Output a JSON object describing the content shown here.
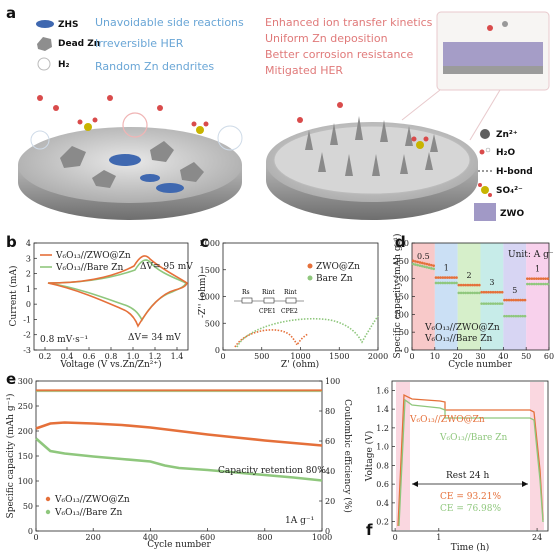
{
  "colors": {
    "orange": "#e5703a",
    "green": "#8fc77d",
    "blue": "#6aa6d6",
    "pink": "#e07a7a"
  },
  "panel_a": {
    "label": "a",
    "legend_left": [
      {
        "icon": "zhs-icon",
        "text": "ZHS"
      },
      {
        "icon": "dead-zn-icon",
        "text": "Dead Zn"
      },
      {
        "icon": "h2-icon",
        "text": "H₂"
      }
    ],
    "issues": [
      "Unavoidable side reactions",
      "Irreversible HER",
      "Random Zn dendrites"
    ],
    "benefits": [
      "Enhanced ion transfer kinetics",
      "Uniform Zn deposition",
      "Better corrosion resistance",
      "Mitigated HER"
    ],
    "legend_right": [
      "Zn²⁺",
      "H₂O",
      "H-bond",
      "SO₄²⁻",
      "ZWO"
    ]
  },
  "chart_data": [
    {
      "panel": "b",
      "type": "line",
      "xlabel": "Voltage (V vs.Zn/Zn²⁺)",
      "ylabel": "Current (mA)",
      "xlim": [
        0.1,
        1.5
      ],
      "ylim": [
        -3,
        4
      ],
      "xticks": [
        "0.2",
        "0.4",
        "0.6",
        "0.8",
        "1.0",
        "1.2",
        "1.4"
      ],
      "yticks": [
        "-3",
        "-2",
        "-1",
        "0",
        "1",
        "2",
        "3",
        "4"
      ],
      "series": [
        {
          "name": "V₆O₁₃//ZWO@Zn",
          "color": "#e5703a"
        },
        {
          "name": "V₆O₁₃//Bare Zn",
          "color": "#8fc77d"
        }
      ],
      "annotations": [
        "ΔV= 95 mV",
        "ΔV= 34 mV",
        "0.8 mV·s⁻¹"
      ]
    },
    {
      "panel": "c",
      "type": "line",
      "xlabel": "Z' (ohm)",
      "ylabel": "-Z'' (ohm)",
      "xlim": [
        0,
        2000
      ],
      "ylim": [
        0,
        2000
      ],
      "xticks": [
        "0",
        "500",
        "1000",
        "1500",
        "2000"
      ],
      "yticks": [
        "0",
        "500",
        "1000",
        "1500",
        "2000"
      ],
      "series": [
        {
          "name": "ZWO@Zn",
          "color": "#e5703a"
        },
        {
          "name": "Bare Zn",
          "color": "#8fc77d"
        }
      ],
      "circuit": [
        "Rs",
        "Rint",
        "Rint",
        "CPE1",
        "CPE2"
      ]
    },
    {
      "panel": "d",
      "type": "scatter",
      "xlabel": "Cycle number",
      "ylabel": "Specific capacity (mAh g⁻¹)",
      "xlim": [
        0,
        60
      ],
      "ylim": [
        0,
        300
      ],
      "xticks": [
        "0",
        "10",
        "20",
        "30",
        "40",
        "50",
        "60"
      ],
      "yticks": [
        "0",
        "50",
        "100",
        "150",
        "200",
        "250",
        "300"
      ],
      "unit_note": "Unit: A g⁻¹",
      "rates": [
        "0.5",
        "1",
        "2",
        "3",
        "5",
        "1"
      ],
      "series": [
        {
          "name": "V₆O₁₃//ZWO@Zn",
          "color": "#e5703a",
          "segments": [
            235,
            203,
            182,
            162,
            140,
            200
          ]
        },
        {
          "name": "V₆O₁₃//Bare Zn",
          "color": "#8fc77d",
          "segments": [
            226,
            188,
            160,
            130,
            95,
            185
          ]
        }
      ]
    },
    {
      "panel": "e",
      "type": "scatter",
      "xlabel": "Cycle number",
      "ylabel": "Specific capacity (mAh g⁻¹)",
      "y2label": "Coulombic efficiency (%)",
      "xlim": [
        0,
        1000
      ],
      "ylim": [
        0,
        300
      ],
      "y2lim": [
        0,
        100
      ],
      "xticks": [
        "0",
        "200",
        "400",
        "600",
        "800",
        "1000"
      ],
      "yticks": [
        "0",
        "50",
        "100",
        "150",
        "200",
        "250",
        "300"
      ],
      "y2ticks": [
        "0",
        "20",
        "40",
        "60",
        "80",
        "100"
      ],
      "annotations": [
        "Capacity retention 80%",
        "1A g⁻¹"
      ],
      "series": [
        {
          "name": "V₆O₁₃//ZWO@Zn",
          "color": "#e5703a",
          "x": [
            0,
            50,
            100,
            200,
            300,
            400,
            500,
            600,
            700,
            800,
            900,
            1000
          ],
          "y": [
            205,
            215,
            217,
            215,
            212,
            207,
            200,
            193,
            187,
            181,
            176,
            171
          ]
        },
        {
          "name": "V₆O₁₃//Bare Zn",
          "color": "#8fc77d",
          "x": [
            0,
            50,
            100,
            200,
            300,
            400,
            450,
            500,
            600,
            700,
            800,
            900,
            1000
          ],
          "y": [
            185,
            160,
            155,
            149,
            144,
            139,
            131,
            126,
            122,
            117,
            112,
            107,
            101
          ]
        }
      ]
    },
    {
      "panel": "f",
      "type": "line",
      "xlabel": "Time (h)",
      "ylabel": "Voltage (V)",
      "xlim": [
        0,
        27
      ],
      "ylim": [
        0.1,
        1.7
      ],
      "xticks": [
        "0",
        "1",
        "24"
      ],
      "yticks": [
        "0.2",
        "0.4",
        "0.6",
        "0.8",
        "1.0",
        "1.2",
        "1.4",
        "1.6"
      ],
      "annotations": [
        "Rest 24 h",
        "CE = 93.21%",
        "CE = 76.98%"
      ],
      "series": [
        {
          "name": "V₆O₁₃//ZWO@Zn",
          "color": "#e5703a"
        },
        {
          "name": "V₆O₁₃//Bare Zn",
          "color": "#8fc77d"
        }
      ]
    }
  ]
}
